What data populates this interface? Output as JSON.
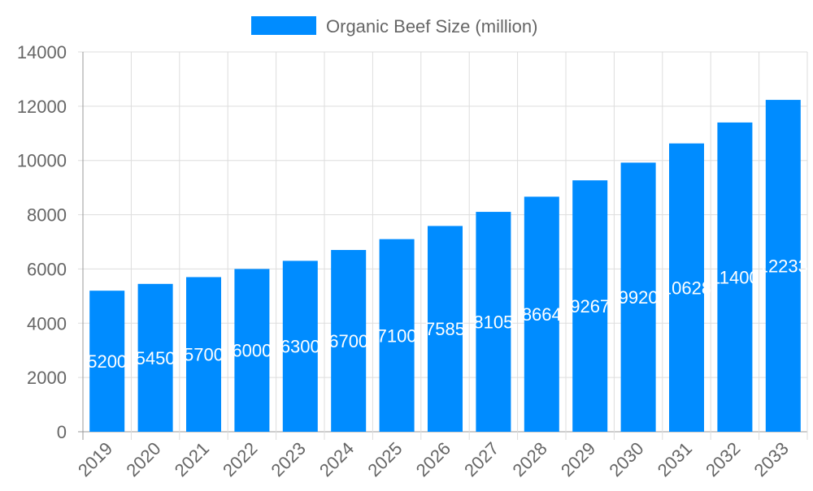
{
  "chart_data": {
    "type": "bar",
    "title": "",
    "xlabel": "",
    "ylabel": "",
    "categories": [
      "2019",
      "2020",
      "2021",
      "2022",
      "2023",
      "2024",
      "2025",
      "2026",
      "2027",
      "2028",
      "2029",
      "2030",
      "2031",
      "2032",
      "2033"
    ],
    "series": [
      {
        "name": "Organic Beef Size (million)",
        "values": [
          5200,
          5450,
          5700,
          6000,
          6300,
          6700,
          7100,
          7585,
          8105,
          8664,
          9267,
          9920,
          10628,
          11400,
          12233
        ],
        "color": "#008cff"
      }
    ],
    "ylim": [
      0,
      14000
    ],
    "yticks": [
      0,
      2000,
      4000,
      6000,
      8000,
      10000,
      12000,
      14000
    ],
    "grid": true,
    "legend": "top-center",
    "data_labels": true
  }
}
